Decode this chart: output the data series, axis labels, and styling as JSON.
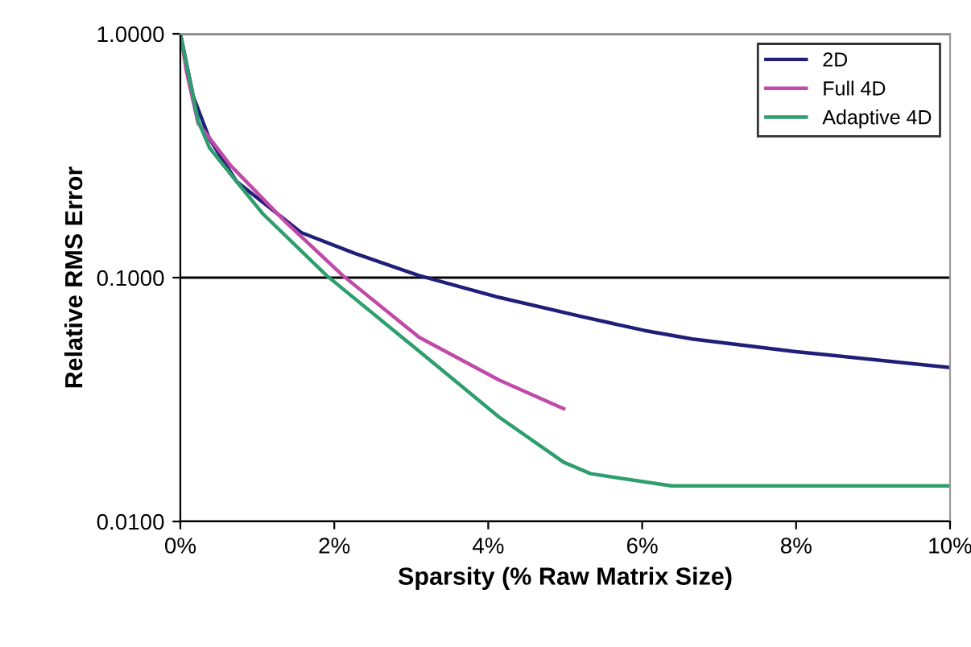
{
  "chart_data": {
    "type": "line",
    "xlabel": "Sparsity (% Raw Matrix Size)",
    "ylabel": "Relative RMS Error",
    "log": "y",
    "xlim": [
      0,
      10
    ],
    "xticks": [
      {
        "value": 0,
        "label": "0%"
      },
      {
        "value": 2,
        "label": "2%"
      },
      {
        "value": 4,
        "label": "4%"
      },
      {
        "value": 6,
        "label": "6%"
      },
      {
        "value": 8,
        "label": "8%"
      },
      {
        "value": 10,
        "label": "10%"
      }
    ],
    "ylim": [
      0.01,
      1
    ],
    "yticks": [
      {
        "value": 0.01,
        "label": "0.0100"
      },
      {
        "value": 0.1,
        "label": "0.1000"
      },
      {
        "value": 1,
        "label": "1.0000"
      }
    ],
    "grid": "y",
    "legend": "top right",
    "marker": "none",
    "line_style": "solid",
    "series": [
      {
        "name": "2D",
        "color": "#1f1f7a",
        "x": [
          0,
          0.17,
          0.38,
          0.73,
          1.57,
          2.26,
          3.1,
          4.14,
          5.19,
          6.03,
          6.65,
          7.97,
          10
        ],
        "values": [
          1.0,
          0.55,
          0.37,
          0.248,
          0.153,
          0.126,
          0.102,
          0.083,
          0.0695,
          0.0607,
          0.056,
          0.0498,
          0.0428
        ]
      },
      {
        "name": "Full 4D",
        "color": "#c04aa8",
        "x": [
          0,
          0.08,
          0.23,
          0.65,
          1.36,
          2.11,
          3.1,
          4.14,
          4.98
        ],
        "values": [
          1.0,
          0.7,
          0.43,
          0.289,
          0.17,
          0.102,
          0.057,
          0.038,
          0.029
        ]
      },
      {
        "name": "Adaptive 4D",
        "color": "#2e9e6e",
        "x": [
          0,
          0.23,
          0.38,
          0.73,
          1.07,
          1.9,
          3.31,
          4.14,
          4.98,
          5.33,
          6.38,
          10
        ],
        "values": [
          1.0,
          0.44,
          0.34,
          0.248,
          0.183,
          0.102,
          0.0441,
          0.0268,
          0.0175,
          0.0157,
          0.014,
          0.014
        ]
      }
    ]
  }
}
